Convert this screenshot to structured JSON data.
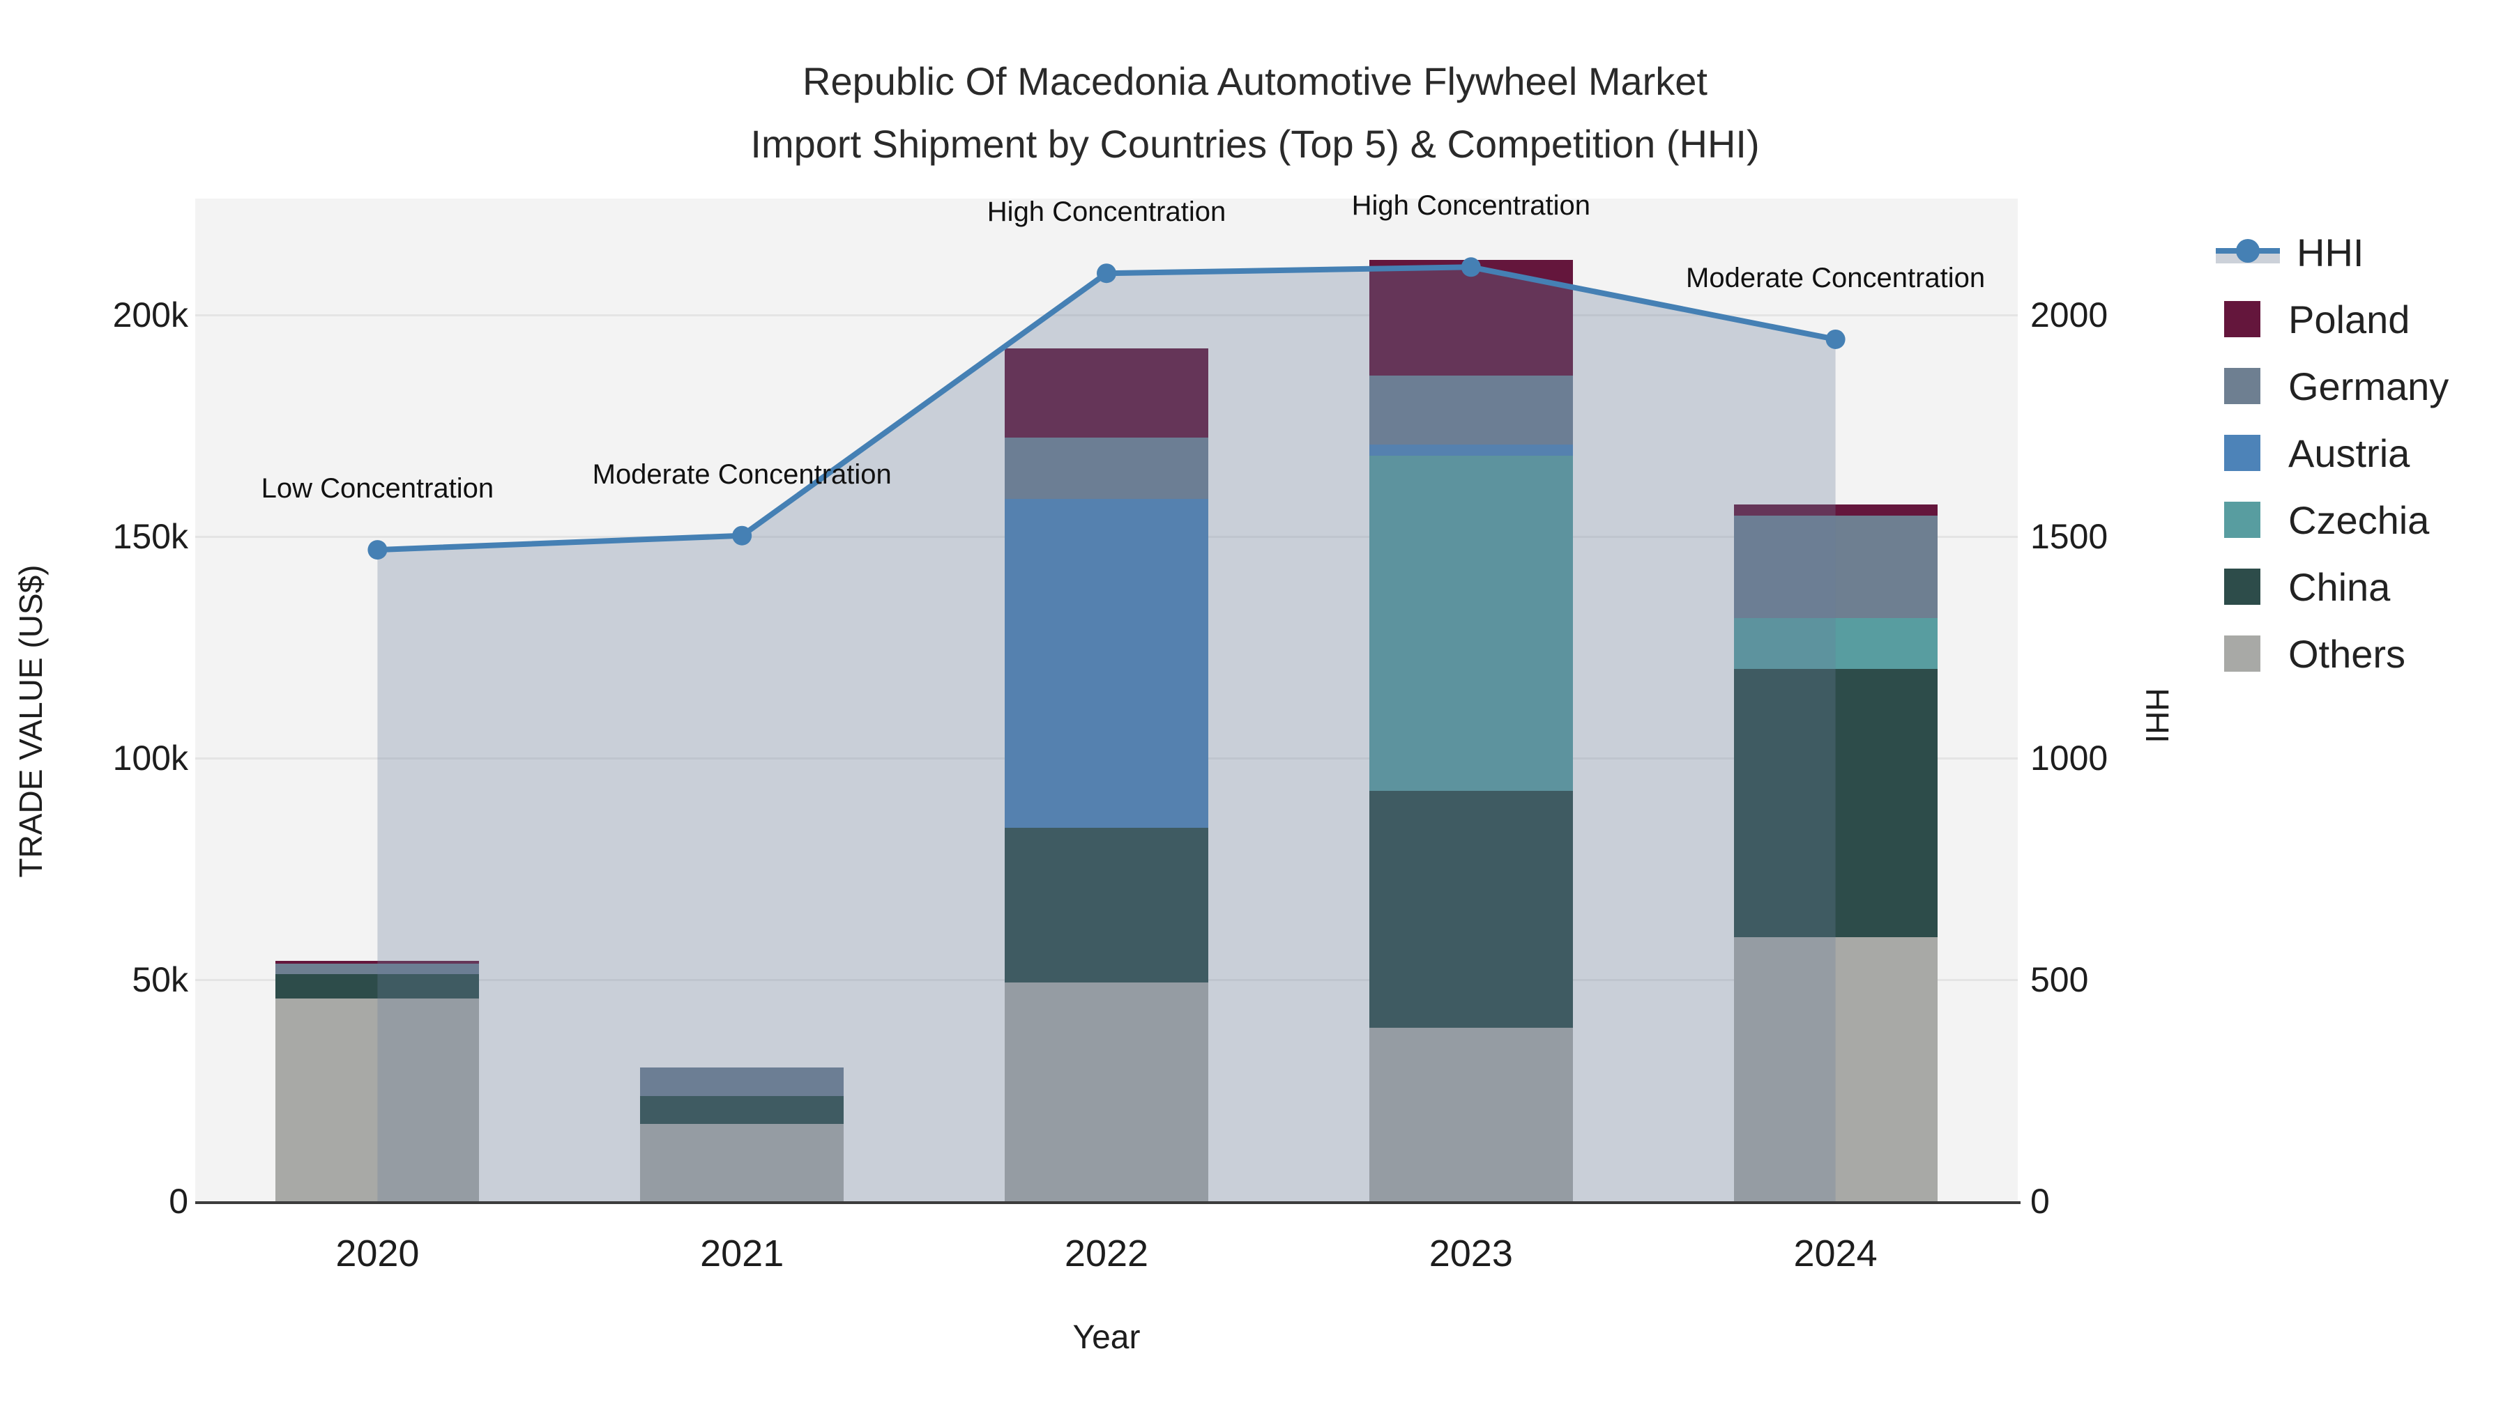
{
  "title": {
    "line1": "Republic Of Macedonia Automotive Flywheel Market",
    "line2": "Import Shipment by Countries (Top 5) & Competition (HHI)"
  },
  "axes": {
    "left": {
      "title": "TRADE VALUE (US$)",
      "ticks": [
        "0",
        "50k",
        "100k",
        "150k",
        "200k"
      ]
    },
    "right": {
      "title": "HHI",
      "ticks": [
        "0",
        "500",
        "1000",
        "1500",
        "2000"
      ]
    },
    "x": {
      "title": "Year"
    }
  },
  "legend": {
    "items": [
      {
        "label": "HHI",
        "type": "line",
        "color": "#4580b4"
      },
      {
        "label": "Poland",
        "type": "bar",
        "color": "#64163c"
      },
      {
        "label": "Germany",
        "type": "bar",
        "color": "#6e7f91"
      },
      {
        "label": "Austria",
        "type": "bar",
        "color": "#4d83b8"
      },
      {
        "label": "Czechia",
        "type": "bar",
        "color": "#589da0"
      },
      {
        "label": "China",
        "type": "bar",
        "color": "#2d4c4a"
      },
      {
        "label": "Others",
        "type": "bar",
        "color": "#a8a9a6"
      }
    ]
  },
  "chart_data": {
    "type": "combo",
    "bar_mode": "stacked",
    "categories": [
      "2020",
      "2021",
      "2022",
      "2023",
      "2024"
    ],
    "bar_value_unit": "thousand US$",
    "stack_order_bottom_to_top": [
      "Others",
      "China",
      "Czechia",
      "Austria",
      "Germany",
      "Poland"
    ],
    "series": [
      {
        "name": "Poland",
        "type": "bar",
        "color": "#64163c",
        "values": [
          0.7,
          0,
          20.1,
          26.2,
          2.5
        ]
      },
      {
        "name": "Germany",
        "type": "bar",
        "color": "#6e7f91",
        "values": [
          2.4,
          6.4,
          13.8,
          15.6,
          23.1
        ]
      },
      {
        "name": "Austria",
        "type": "bar",
        "color": "#4d83b8",
        "values": [
          0,
          0,
          74.2,
          2.5,
          0
        ]
      },
      {
        "name": "Czechia",
        "type": "bar",
        "color": "#589da0",
        "values": [
          0,
          0,
          0,
          75.6,
          11.4
        ]
      },
      {
        "name": "China",
        "type": "bar",
        "color": "#2d4c4a",
        "values": [
          5.5,
          6.3,
          34.9,
          53.5,
          60.6
        ]
      },
      {
        "name": "Others",
        "type": "bar",
        "color": "#a8a9a6",
        "values": [
          45.7,
          17.5,
          49.4,
          39.1,
          59.6
        ]
      }
    ],
    "bar_totals": [
      54.3,
      30.2,
      192.4,
      212.5,
      157.2
    ],
    "line": {
      "name": "HHI",
      "axis": "right",
      "color": "#4580b4",
      "area": true,
      "area_color": "rgba(105,125,155,0.30)",
      "values": [
        1470,
        1502,
        2094,
        2108,
        1945
      ]
    },
    "annotations": [
      {
        "year": "2020",
        "text": "Low Concentration"
      },
      {
        "year": "2021",
        "text": "Moderate Concentration"
      },
      {
        "year": "2022",
        "text": "High Concentration"
      },
      {
        "year": "2023",
        "text": "High Concentration"
      },
      {
        "year": "2024",
        "text": "Moderate Concentration"
      }
    ],
    "xlabel": "Year",
    "ylabel_left": "TRADE VALUE (US$)",
    "ylabel_right": "HHI",
    "ylim_left": [
      0,
      226
    ],
    "ylim_right": [
      0,
      2260
    ],
    "grid": true,
    "legend_position": "right-top"
  }
}
